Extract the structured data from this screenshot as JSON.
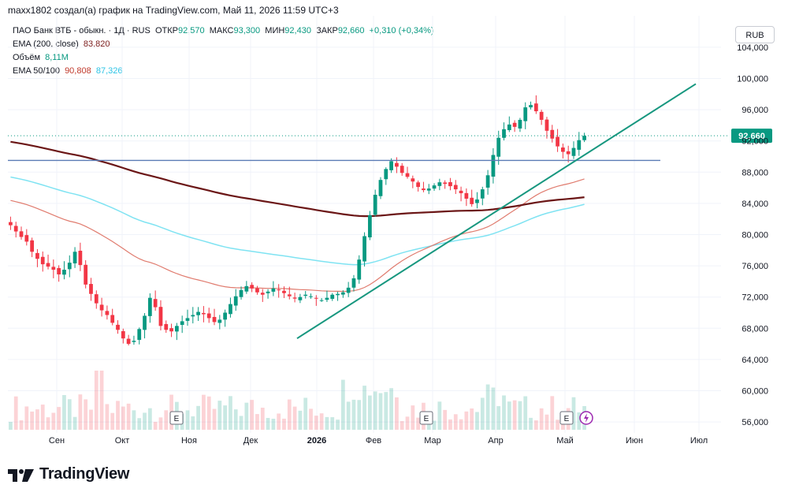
{
  "header": {
    "attribution": "maxx1802 создал(а) график на TradingView.com, Май 11, 2026 11:59 UTC+3"
  },
  "legend": {
    "symbol": "ПАО Банк ВТБ - обыкн. · 1Д · RUS",
    "open_label": "ОТКР",
    "open": "92,570",
    "high_label": "МАКС",
    "high": "93,300",
    "low_label": "МИН",
    "low": "92,430",
    "close_label": "ЗАКР",
    "close": "92,660",
    "change": "+0,310 (+0,34%)",
    "ema200_label": "EMA (200, close)",
    "ema200": "83,820",
    "volume_label": "Объём",
    "volume": "8,11M",
    "ema50_100_label": "EMA 50/100",
    "ema50": "90,808",
    "ema100": "87,326"
  },
  "currency_button": "RUB",
  "last_price_badge": "92,660",
  "event_markers": [
    "E",
    "E",
    "E"
  ],
  "brand": {
    "name": "TradingView",
    "icon": "tradingview-logo-icon"
  },
  "colors": {
    "up": "#089981",
    "down": "#f23645",
    "ema200": "#6b1616",
    "ema50": "#e07b6e",
    "ema100": "#7fe3f2",
    "trend": "#17977f",
    "hline": "#5a7bb5",
    "grid": "#f0f3fa"
  },
  "chart_data": {
    "type": "candlestick",
    "y_axis_ticks": [
      "104,000",
      "100,000",
      "96,000",
      "92,000",
      "88,000",
      "84,000",
      "80,000",
      "76,000",
      "72,000",
      "68,000",
      "64,000",
      "60,000",
      "56,000"
    ],
    "x_axis_ticks": [
      "Сен",
      "Окт",
      "Ноя",
      "Дек",
      "2026",
      "Фев",
      "Мар",
      "Апр",
      "Май",
      "Июн",
      "Июл"
    ],
    "ylim": [
      55000,
      105000
    ],
    "horizontal_level": 89500,
    "trendline": {
      "from": [
        "2025-12",
        66700
      ],
      "to": [
        "2026-07",
        99300
      ]
    },
    "close_series": [
      81200,
      80400,
      79700,
      79100,
      77800,
      76900,
      76200,
      75900,
      75500,
      74900,
      75500,
      76400,
      77800,
      76100,
      73600,
      72400,
      71200,
      70300,
      69700,
      68700,
      67800,
      66700,
      66000,
      66400,
      67900,
      69600,
      71900,
      70700,
      68300,
      67800,
      67600,
      68300,
      68900,
      69300,
      69700,
      70100,
      69800,
      69300,
      68800,
      69100,
      70000,
      71100,
      72100,
      72900,
      73400,
      73100,
      72600,
      72300,
      72700,
      73100,
      72900,
      72500,
      72100,
      71800,
      72000,
      72300,
      72100,
      71800,
      71600,
      71900,
      72300,
      72400,
      72600,
      73200,
      74400,
      76800,
      79800,
      82500,
      85100,
      87000,
      88400,
      89400,
      88700,
      87900,
      87400,
      86800,
      86100,
      85700,
      85900,
      86300,
      86700,
      86500,
      86200,
      85800,
      85300,
      84600,
      83900,
      84500,
      85800,
      87600,
      90200,
      92400,
      93500,
      94100,
      93800,
      94700,
      96300,
      96600,
      95800,
      94700,
      93300,
      92300,
      91300,
      90600,
      90300,
      91100,
      92100,
      92660
    ],
    "series": [
      {
        "name": "EMA (200, close)",
        "last": 83820
      },
      {
        "name": "EMA 50/100",
        "values": [
          90808,
          87326
        ]
      }
    ],
    "volume_last": "8,11M"
  }
}
